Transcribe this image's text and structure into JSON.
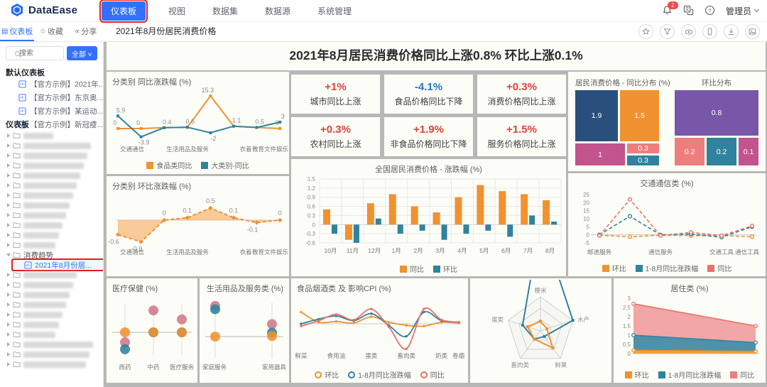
{
  "navbar": {
    "logo_text": "DataEase",
    "menu": [
      "仪表板",
      "视图",
      "数据集",
      "数据源",
      "系统管理"
    ],
    "active_menu": "仪表板",
    "notification_count": "2",
    "user": "管理员"
  },
  "sidebar": {
    "tabs": [
      {
        "label": "仪表板",
        "active": true
      },
      {
        "label": "收藏",
        "active": false
      },
      {
        "label": "分享",
        "active": false
      }
    ],
    "search_placeholder": "搜索",
    "filter_label": "全部",
    "default_section_title": "默认仪表板",
    "default_items": [
      "【官方示例】2021年...",
      "【官方示例】东京奥...",
      "【官方示例】某运动...",
      "【官方示例】新冠疫..."
    ],
    "boards_section_title": "仪表板",
    "blurred_before": 12,
    "expanded_folder": "消费趋势",
    "selected_item": "2021年8月份居...",
    "blurred_after": 10
  },
  "tabbar": {
    "active_tab": "2021年8月份居民消费价格"
  },
  "dashboard_title": "2021年8月居民消费价格同比上涨0.8% 环比上涨0.1%",
  "kpis": [
    {
      "value": "+1%",
      "label": "城市同比上涨",
      "color": "#E2403C"
    },
    {
      "value": "-4.1%",
      "label": "食品价格同比下降",
      "color": "#2176C7"
    },
    {
      "value": "+0.3%",
      "label": "消费价格同比上涨",
      "color": "#E2403C"
    },
    {
      "value": "+0.3%",
      "label": "农村同比上涨",
      "color": "#E2403C"
    },
    {
      "value": "+1.9%",
      "label": "非食品价格同比下降",
      "color": "#E2403C"
    },
    {
      "value": "+1.5%",
      "label": "服务价格同比上涨",
      "color": "#E2403C"
    }
  ],
  "colors": {
    "orange": "#F0922F",
    "teal": "#2F839D",
    "red": "#E9706C",
    "rose": "#D1788A",
    "navy": "#29507D",
    "magenta": "#C2538D",
    "salmon": "#EE7E7E",
    "purple": "#7857A8",
    "accent": "#3370FF",
    "annotation": "#E02020"
  },
  "chart_data": {
    "cat_yoy": {
      "type": "line",
      "title": "分类别 同比涨跌幅 (%)",
      "x_labels": [
        {
          "i": 0,
          "t": "交通通信"
        },
        {
          "i": 3,
          "t": "生活用品及服务"
        },
        {
          "i": 6,
          "t": "衣着"
        },
        {
          "i": 7,
          "t": "教育文件娱乐"
        }
      ],
      "series": [
        {
          "name": "食品类同比",
          "values": [
            0,
            0,
            0.4,
            0.6,
            15.3,
            1.1,
            0.5,
            0
          ],
          "labels": [
            0,
            0,
            null,
            null,
            15.3,
            null,
            null,
            0
          ]
        },
        {
          "name": "大类别-同比",
          "values": [
            5.9,
            -3.9,
            0.4,
            0.6,
            -2,
            1.1,
            0.5,
            3
          ],
          "labels": [
            5.9,
            -3.9,
            0.4,
            0.6,
            -2,
            1.1,
            0.5,
            3
          ]
        }
      ]
    },
    "cat_mom": {
      "type": "area",
      "title": "分类别 环比涨跌幅 (%)",
      "x_labels": [
        {
          "i": 0,
          "t": "交通通信"
        },
        {
          "i": 3,
          "t": "生活用品及服务"
        },
        {
          "i": 6,
          "t": "衣着"
        },
        {
          "i": 7,
          "t": "教育文件娱乐"
        }
      ],
      "values": [
        -0.6,
        -0.9,
        0,
        0.1,
        0.5,
        0.1,
        -0.1,
        0
      ]
    },
    "national": {
      "type": "bar",
      "title": "全国居民消费价格 - 涨跌幅 (%)",
      "categories": [
        "10月",
        "11月",
        "12月",
        "1月",
        "2月",
        "3月",
        "4月",
        "5月",
        "6月",
        "7月",
        "8月"
      ],
      "series": [
        {
          "name": "同比",
          "values": [
            0.5,
            -0.5,
            0.7,
            1,
            0.6,
            0.4,
            0.9,
            1.3,
            1.1,
            1,
            0.8
          ]
        },
        {
          "name": "环比",
          "values": [
            -0.3,
            -0.6,
            0.2,
            -0.3,
            -0.2,
            -0.5,
            -0.3,
            -0.2,
            -0.4,
            0.3,
            0.1
          ]
        }
      ],
      "ylim": [
        -0.6,
        1.5
      ],
      "yticks": [
        1.5,
        1.2,
        0.9,
        0.6,
        0.3,
        0,
        -0.3,
        -0.6
      ]
    },
    "treemaps": [
      {
        "title": "居民消费价格 - 同比分布 (%)",
        "blocks": [
          {
            "v": "1.9",
            "c": "navy"
          },
          {
            "v": "1.5",
            "c": "orange"
          },
          {
            "v": "1",
            "c": "magenta"
          },
          {
            "v": "0.3",
            "c": "salmon"
          },
          {
            "v": "0.3",
            "c": "teal"
          }
        ]
      },
      {
        "title": "环比分布",
        "blocks": [
          {
            "v": "0.8",
            "c": "purple"
          },
          {
            "v": "0.2",
            "c": "salmon"
          },
          {
            "v": "0.2",
            "c": "teal"
          },
          {
            "v": "0.1",
            "c": "magenta"
          }
        ]
      }
    ],
    "comm": {
      "type": "line",
      "title": "交通通信类 (%)",
      "yticks": [
        25,
        20,
        15,
        10,
        5,
        0,
        -5
      ],
      "x_labels": [
        {
          "i": 0,
          "t": "邮递服务"
        },
        {
          "i": 2,
          "t": "通信服务"
        },
        {
          "i": 4,
          "t": "交通工具"
        },
        {
          "i": 5,
          "t": "通信工具"
        }
      ],
      "series": [
        {
          "name": "环比",
          "values": [
            -0.3,
            -1.2,
            -0.3,
            -0.5,
            -0.5,
            -1.2
          ]
        },
        {
          "name": "1-8月同比涨跌幅",
          "values": [
            0,
            11.5,
            0,
            0.5,
            -1.5,
            5
          ]
        },
        {
          "name": "同比",
          "values": [
            -0.5,
            22,
            -0.5,
            1.5,
            -0.5,
            5.5
          ]
        }
      ]
    },
    "medical": {
      "type": "scatter",
      "title": "医疗保健 (%)",
      "categories": [
        "西药",
        "中药",
        "医疗服务"
      ],
      "series": [
        {
          "name": "同比",
          "values": [
            -1,
            2.2,
            1.3
          ]
        },
        {
          "name": "1-8月同比涨跌幅",
          "values": [
            -1.7,
            0,
            0
          ]
        },
        {
          "name": "环比",
          "values": [
            0,
            0,
            0
          ]
        }
      ]
    },
    "household": {
      "type": "scatter",
      "title": "生活用品及服务类 (%)",
      "categories": [
        "家庭服务",
        "家用器具"
      ],
      "series": [
        {
          "name": "同比",
          "values": [
            2.7,
            1.1
          ]
        },
        {
          "name": "1-8月同比涨跌幅",
          "values": [
            2.4,
            0.35
          ]
        },
        {
          "name": "环比",
          "values": [
            0,
            0.05
          ]
        }
      ]
    },
    "food": {
      "type": "line-smooth",
      "title": "食品烟酒类 及 影响CPI (%)",
      "x_labels": [
        {
          "i": 0,
          "t": "鲜菜"
        },
        {
          "i": 2,
          "t": "食用油"
        },
        {
          "i": 4,
          "t": "蛋类"
        },
        {
          "i": 6,
          "t": "畜肉类"
        },
        {
          "i": 8,
          "t": "奶类"
        },
        {
          "i": 9,
          "t": "卷烟"
        }
      ],
      "series": [
        {
          "name": "环比",
          "values": [
            1.5,
            0.2,
            0.3,
            0.1,
            0.9,
            0.2,
            -0.2,
            -0.3,
            0.2,
            0.1
          ]
        },
        {
          "name": "1-8月同比涨跌幅",
          "values": [
            0,
            0.6,
            1,
            0.4,
            1.3,
            -0.2,
            -1.6,
            1.5,
            0.4,
            0.2
          ]
        },
        {
          "name": "同比",
          "values": [
            -0.3,
            0.4,
            1.2,
            0.5,
            1.9,
            -0.4,
            -3.2,
            1.9,
            0.5,
            0.2
          ]
        }
      ]
    },
    "radar": {
      "type": "radar",
      "axes": [
        "粳米",
        "水产",
        "鲜果",
        "畜肉类",
        "蛋类"
      ],
      "series": [
        {
          "name": "1-8月同比涨跌幅",
          "values": [
            3.2,
            1,
            0.2,
            0.3,
            0.55
          ]
        },
        {
          "name": "环比",
          "values": [
            0.28,
            0.2,
            0.62,
            0.3,
            0.4
          ]
        }
      ]
    },
    "housing": {
      "type": "area",
      "title": "居住类 (%)",
      "yticks": [
        3,
        2.5,
        2,
        1.5,
        1,
        0.5,
        0
      ],
      "series": [
        {
          "name": "同比",
          "values": [
            2.7,
            1.5
          ]
        },
        {
          "name": "1-8月同比涨跌幅",
          "values": [
            1,
            0.6
          ]
        },
        {
          "name": "环比",
          "values": [
            0.18,
            0.12
          ]
        }
      ]
    }
  }
}
